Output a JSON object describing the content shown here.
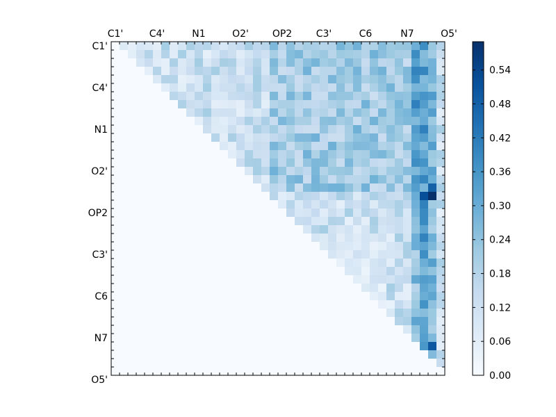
{
  "chart_data": [
    {
      "type": "heatmap",
      "title": "",
      "xlabel": "",
      "ylabel": "",
      "size": 40,
      "x_tick_labels": [
        "C1'",
        "C4'",
        "N1",
        "O2'",
        "OP2",
        "C3'",
        "C6",
        "N7",
        "O5'"
      ],
      "y_tick_labels": [
        "C1'",
        "C4'",
        "N1",
        "O2'",
        "OP2",
        "C3'",
        "C6",
        "N7",
        "O5'"
      ],
      "label_tick_indices": [
        0,
        5,
        10,
        15,
        20,
        25,
        30,
        35,
        40
      ],
      "x_axis_position": "top",
      "colormap": "Blues",
      "color_stops": [
        "#f7fbff",
        "#deebf7",
        "#c6dbef",
        "#9ecae1",
        "#6baed6",
        "#4292c6",
        "#2171b5",
        "#08519c",
        "#08306b"
      ],
      "vmin": 0.0,
      "vmax": 0.59,
      "colorbar_ticks": [
        "0.00",
        "0.06",
        "0.12",
        "0.18",
        "0.24",
        "0.30",
        "0.36",
        "0.42",
        "0.48",
        "0.54"
      ],
      "notes_pattern": "upper triangle filled; strongest values in columns 37-38 near rows 17-19",
      "hotspots": [
        {
          "row": 18,
          "col": 38,
          "value": 0.59
        },
        {
          "row": 18,
          "col": 37,
          "value": 0.52
        },
        {
          "row": 17,
          "col": 38,
          "value": 0.48
        },
        {
          "row": 36,
          "col": 38,
          "value": 0.5
        }
      ]
    }
  ]
}
